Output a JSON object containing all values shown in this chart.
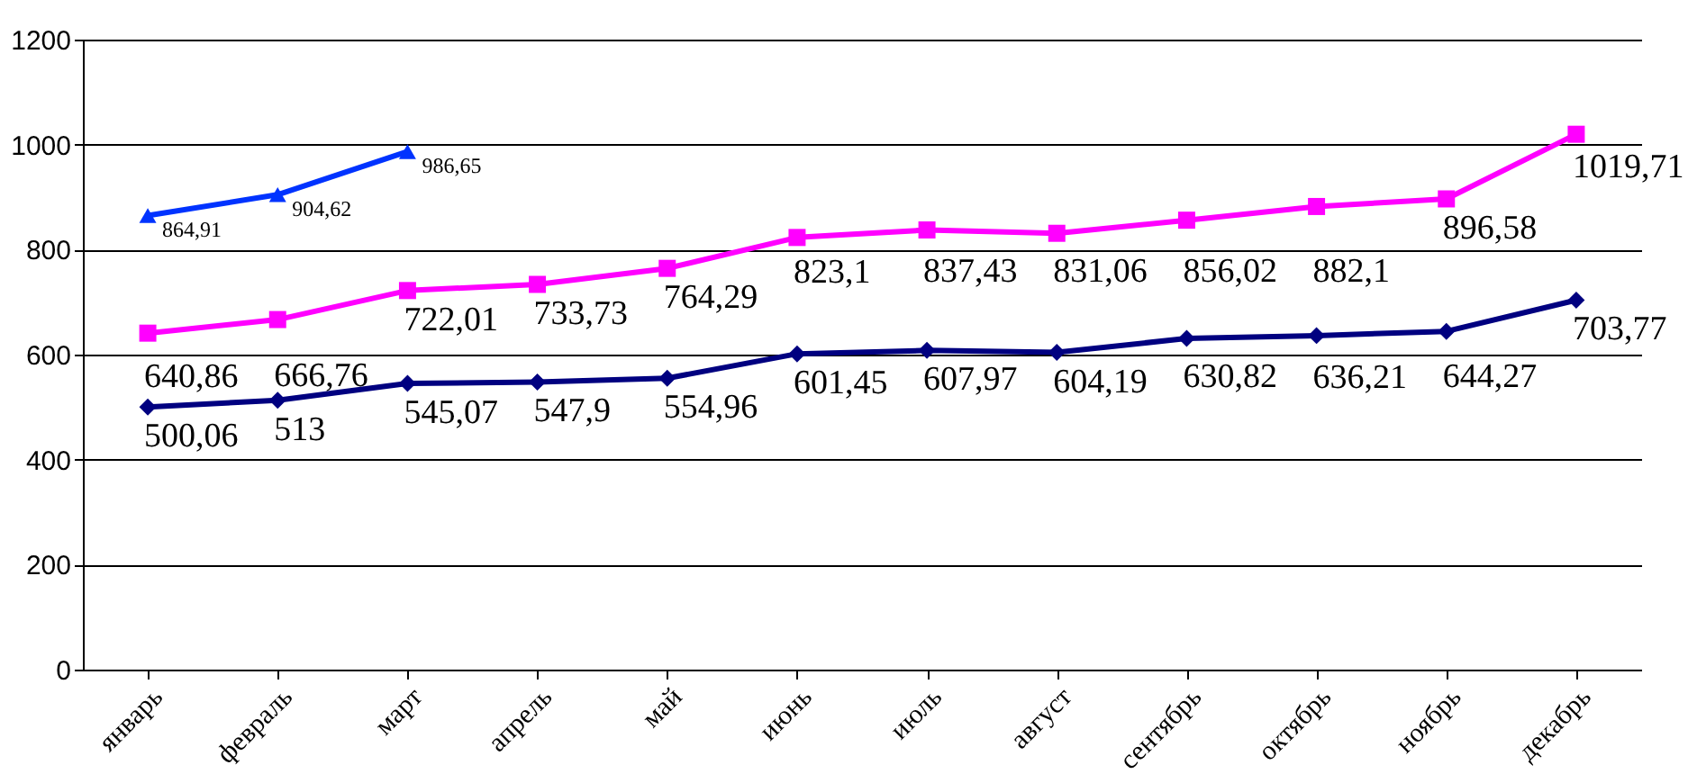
{
  "chart_data": {
    "type": "line",
    "categories": [
      "январь",
      "февраль",
      "март",
      "апрель",
      "май",
      "июнь",
      "июль",
      "август",
      "сентябрь",
      "октябрь",
      "ноябрь",
      "декабрь"
    ],
    "series": [
      {
        "color": "#000080",
        "marker": "diamond",
        "values": [
          500.06,
          513,
          545.07,
          547.9,
          554.96,
          601.45,
          607.97,
          604.19,
          630.82,
          636.21,
          644.27,
          703.77
        ],
        "value_labels": [
          "500,06",
          "513",
          "545,07",
          "547,9",
          "554,96",
          "601,45",
          "607,97",
          "604,19",
          "630,82",
          "636,21",
          "644,27",
          "703,77"
        ]
      },
      {
        "color": "#ff00ff",
        "marker": "square",
        "values": [
          640.86,
          666.76,
          722.01,
          733.73,
          764.29,
          823.1,
          837.43,
          831.06,
          856.02,
          882.1,
          896.58,
          1019.71
        ],
        "value_labels": [
          "640,86",
          "666,76",
          "722,01",
          "733,73",
          "764,29",
          "823,1",
          "837,43",
          "831,06",
          "856,02",
          "882,1",
          "896,58",
          "1019,71"
        ]
      },
      {
        "color": "#0033ff",
        "marker": "triangle",
        "values": [
          864.91,
          904.62,
          986.65,
          null,
          null,
          null,
          null,
          null,
          null,
          null,
          null,
          null
        ],
        "value_labels": [
          "864,91",
          "904,62",
          "986,65",
          null,
          null,
          null,
          null,
          null,
          null,
          null,
          null,
          null
        ]
      }
    ],
    "ylim": [
      0,
      1200
    ],
    "yticks": [
      0,
      200,
      400,
      600,
      800,
      1000,
      1200
    ],
    "grid": "y"
  }
}
